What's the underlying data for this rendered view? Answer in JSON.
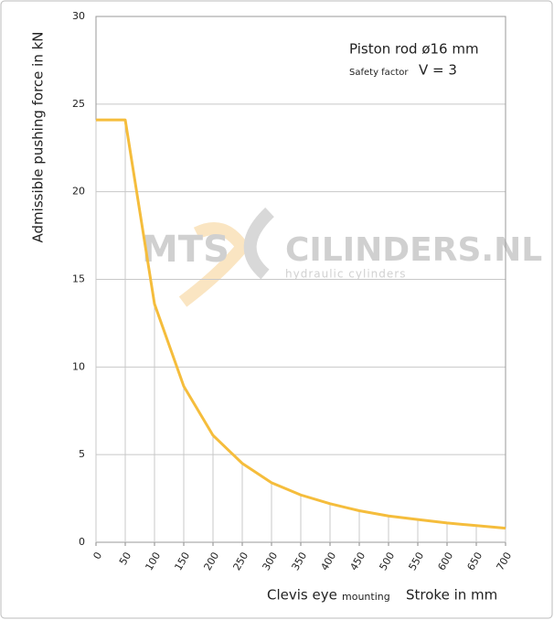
{
  "chart_data": {
    "type": "line",
    "y_label": "Admissible pushing  force in kN",
    "x_label_parts": [
      "Clevis eye",
      "mounting",
      "Stroke in mm"
    ],
    "annotations": [
      "Piston rod ø16 mm",
      "Safety factor",
      "V = 3"
    ],
    "watermark": [
      "MTS",
      "CILINDERS.NL",
      "hydraulic  cylinders"
    ],
    "x": [
      0,
      50,
      100,
      150,
      200,
      250,
      300,
      350,
      400,
      450,
      500,
      550,
      600,
      650,
      700
    ],
    "series": [
      {
        "color": "#f5bd3c",
        "values": [
          24.1,
          24.1,
          13.6,
          8.9,
          6.1,
          4.5,
          3.4,
          2.7,
          2.2,
          1.8,
          1.5,
          1.3,
          1.1,
          0.95,
          0.8
        ]
      }
    ],
    "xlim": [
      0,
      700
    ],
    "ylim": [
      0,
      30
    ],
    "xticks": [
      0,
      50,
      100,
      150,
      200,
      250,
      300,
      350,
      400,
      450,
      500,
      550,
      600,
      650,
      700
    ],
    "yticks": [
      0,
      5,
      10,
      15,
      20,
      25,
      30
    ],
    "grid": true,
    "drop_lines": true
  }
}
